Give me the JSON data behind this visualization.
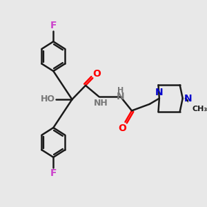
{
  "bg_color": "#e8e8e8",
  "bond_color": "#1a1a1a",
  "o_color": "#ff0000",
  "n_color": "#0000cc",
  "f_color": "#cc44cc",
  "h_color": "#777777",
  "line_width": 1.8,
  "font_size_atom": 9,
  "font_size_small": 8,
  "xlim": [
    0,
    10
  ],
  "ylim": [
    0,
    10
  ],
  "ring_r": 0.72,
  "upper_ring": [
    2.8,
    7.3
  ],
  "lower_ring": [
    2.8,
    3.1
  ],
  "central_c": [
    3.8,
    5.2
  ],
  "piperazine_pw": 1.1,
  "piperazine_ph": 0.65
}
